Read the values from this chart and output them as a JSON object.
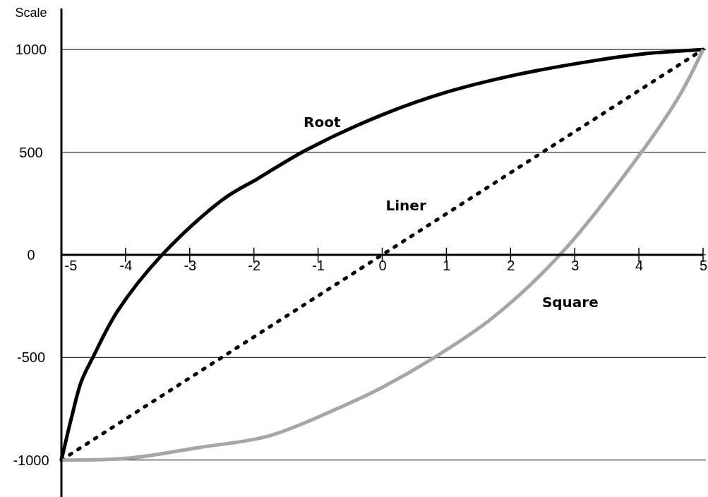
{
  "chart_data": {
    "type": "line",
    "ylabel": "Scale",
    "xlim": [
      -5,
      5
    ],
    "ylim": [
      -1180,
      1200
    ],
    "xticks": [
      -5,
      -4,
      -3,
      -2,
      -1,
      0,
      1,
      2,
      3,
      4,
      5
    ],
    "yticks": [
      -1000,
      -500,
      0,
      500,
      1000
    ],
    "grid": "y",
    "series": [
      {
        "name": "Root",
        "color": "#000000",
        "line_style": "solid",
        "x": [
          -5,
          -4.84,
          -4.69,
          -4.51,
          -4.12,
          -3.43,
          -2.49,
          -1.94,
          -1.17,
          0,
          0.99,
          2.09,
          3.19,
          4.1,
          5
        ],
        "values": [
          -1000,
          -790,
          -617,
          -500,
          -272,
          0,
          268,
          371,
          513,
          682,
          791,
          877,
          940,
          980,
          1000
        ]
      },
      {
        "name": "Liner",
        "color": "#000000",
        "line_style": "dotted",
        "x": [
          -5,
          5
        ],
        "values": [
          -1000,
          1000
        ]
      },
      {
        "name": "Square",
        "color": "#a6a6a6",
        "line_style": "solid",
        "x": [
          -5,
          -3.96,
          -2.86,
          -1.76,
          -0.66,
          0,
          0.88,
          1.72,
          2.77,
          4.07,
          4.65,
          5
        ],
        "values": [
          -1000,
          -991,
          -939,
          -882,
          -744,
          -646,
          -487,
          -307,
          0,
          513,
          785,
          1000
        ]
      }
    ]
  }
}
